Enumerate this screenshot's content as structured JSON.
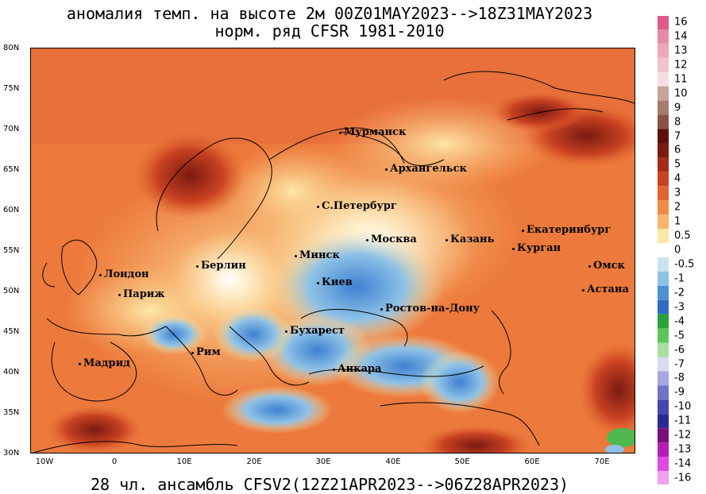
{
  "title_line1": "аномалия темп. на высоте 2м 00Z01MAY2023-->18Z31MAY2023",
  "title_line2": "норм. ряд CFSR 1981-2010",
  "footer": "28 чл. ансамбль CFSV2(12Z21APR2023-->06Z28APR2023)",
  "lat_labels": [
    "80N",
    "75N",
    "70N",
    "65N",
    "60N",
    "55N",
    "50N",
    "45N",
    "40N",
    "35N",
    "30N"
  ],
  "lon_labels": [
    "10W",
    "0",
    "10E",
    "20E",
    "30E",
    "40E",
    "50E",
    "60E",
    "70E"
  ],
  "cities": {
    "murmansk": "Мурманск",
    "arkhangelsk": "Архангельск",
    "spb": "С.Петербург",
    "moscow": "Москва",
    "kazan": "Казань",
    "yekaterinburg": "Екатеринбург",
    "kurgan": "Курган",
    "omsk": "Омск",
    "astana": "Астана",
    "berlin": "Берлин",
    "minsk": "Минск",
    "london": "Лондон",
    "paris": "Париж",
    "kiev": "Киев",
    "rostov": "Ростов-на-Дону",
    "bucharest": "Бухарест",
    "rome": "Рим",
    "madrid": "Мадрид",
    "ankara": "Анкара"
  },
  "colorbar_ticks": [
    "16",
    "14",
    "13",
    "12",
    "11",
    "10",
    "9",
    "8",
    "7",
    "6",
    "5",
    "4",
    "3",
    "2",
    "1",
    "0.5",
    "0",
    "-0.5",
    "-1",
    "-2",
    "-3",
    "-4",
    "-5",
    "-6",
    "-7",
    "-8",
    "-9",
    "-10",
    "-11",
    "-12",
    "-13",
    "-14",
    "-16"
  ],
  "colorbar_colors": [
    "#e05a8a",
    "#e58aa5",
    "#eda8b8",
    "#f2c3cc",
    "#f7dde2",
    "#c7a39a",
    "#a97b6e",
    "#8a5244",
    "#5c0f0c",
    "#7a1a10",
    "#a52a18",
    "#c94222",
    "#e0652e",
    "#f08a45",
    "#f8b56e",
    "#fde7a8",
    "#ffffff",
    "#c9e4f0",
    "#8ec2e6",
    "#4f8fd6",
    "#2f6dc4",
    "#2aa13a",
    "#5cc65c",
    "#a8e0a0",
    "#d9d9f2",
    "#a6a6e0",
    "#7272c8",
    "#4646b0",
    "#2a2a90",
    "#7a0f7a",
    "#b41eb4",
    "#e04ae0",
    "#f0a0f0"
  ]
}
